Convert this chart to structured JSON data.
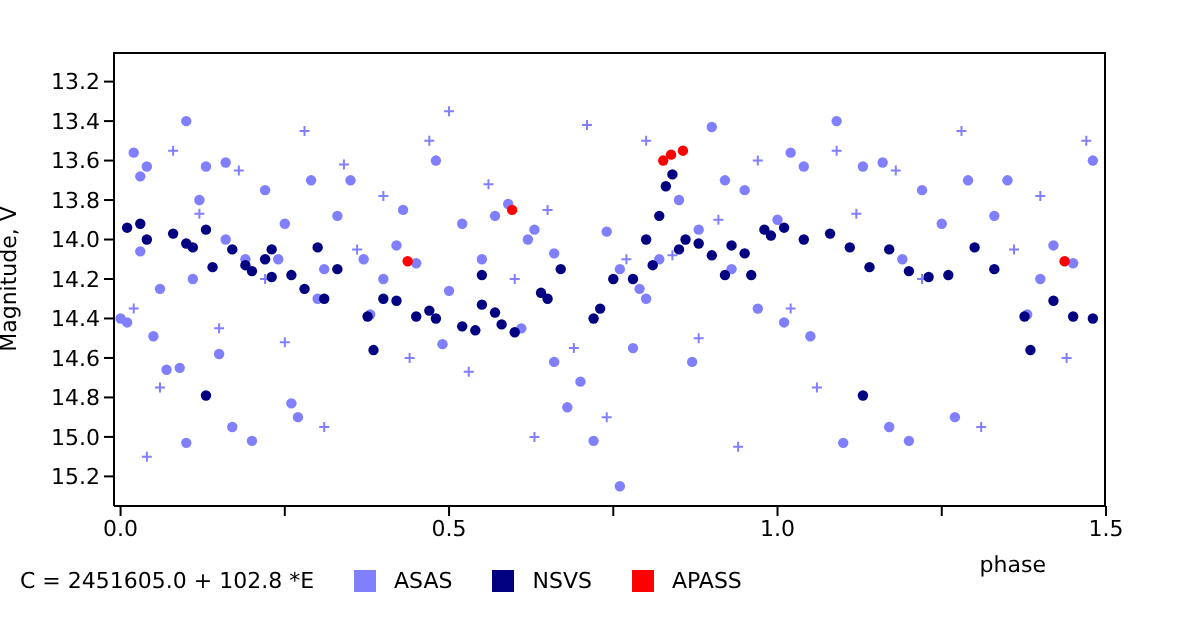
{
  "chart_data": {
    "type": "scatter",
    "xlabel": "phase",
    "ylabel": "Magnitude, V",
    "xlim": [
      -0.01,
      1.5
    ],
    "ylim": [
      15.35,
      13.05
    ],
    "xticks": [
      {
        "value": 0,
        "label": "0.0"
      },
      {
        "value": 0.25,
        "label": null
      },
      0.5,
      {
        "value": 0.75,
        "label": null
      },
      {
        "value": 1,
        "label": "1.0"
      },
      {
        "value": 1.25,
        "label": null
      },
      1.5
    ],
    "yticks": [
      13.2,
      13.4,
      13.6,
      13.8,
      {
        "value": 14,
        "label": "14.0"
      },
      14.2,
      14.4,
      14.6,
      14.8,
      {
        "value": 15,
        "label": "15.0"
      },
      15.2
    ],
    "legend": "bottom left",
    "annotations": [
      "C = 2451605.0 + 102.8 *E"
    ],
    "series": [
      {
        "name": "ASAS",
        "color": "#8080ff",
        "marker": "circle",
        "x": [
          0.0,
          0.01,
          0.02,
          0.03,
          0.03,
          0.04,
          0.05,
          0.07,
          0.09,
          0.1,
          0.1,
          0.11,
          0.12,
          0.13,
          0.15,
          0.16,
          0.17,
          0.19,
          0.2,
          0.22,
          0.24,
          0.25,
          0.26,
          0.27,
          0.29,
          0.3,
          0.33,
          0.35,
          0.37,
          0.38,
          0.4,
          0.43,
          0.45,
          0.48,
          0.49,
          0.5,
          0.06,
          0.16,
          0.31,
          0.42,
          0.52,
          0.55,
          0.57,
          0.59,
          0.62,
          0.63,
          0.66,
          0.68,
          0.7,
          0.72,
          0.74,
          0.76,
          0.78,
          0.8,
          0.82,
          0.85,
          0.88,
          0.9,
          0.92,
          0.93,
          0.95,
          0.97,
          1.0,
          0.87,
          0.79,
          0.61,
          0.66,
          0.76,
          1.01,
          1.02,
          1.04,
          1.05,
          1.09,
          1.1,
          1.13,
          1.16,
          1.17,
          1.19,
          1.2,
          1.22,
          1.25,
          1.27,
          1.29,
          1.33,
          1.35,
          1.38,
          1.4,
          1.45,
          1.48,
          1.42
        ],
        "values": [
          14.4,
          14.42,
          13.56,
          13.68,
          14.06,
          13.63,
          14.49,
          14.66,
          14.65,
          13.4,
          15.03,
          14.2,
          13.8,
          13.63,
          14.58,
          13.61,
          14.95,
          14.1,
          15.02,
          13.75,
          14.1,
          13.92,
          14.83,
          14.9,
          13.7,
          14.3,
          13.88,
          13.7,
          14.1,
          14.38,
          14.2,
          13.85,
          14.12,
          13.6,
          14.53,
          14.26,
          14.25,
          14.0,
          14.15,
          14.03,
          13.92,
          14.1,
          13.88,
          13.82,
          14.0,
          13.95,
          14.07,
          14.85,
          14.72,
          15.02,
          13.96,
          14.15,
          14.55,
          14.3,
          14.1,
          13.8,
          13.95,
          13.43,
          13.7,
          14.15,
          13.75,
          14.35,
          13.9,
          14.62,
          14.25,
          14.45,
          14.62,
          15.25,
          14.42,
          13.56,
          13.63,
          14.49,
          13.4,
          15.03,
          13.63,
          13.61,
          14.95,
          14.1,
          15.02,
          13.75,
          13.92,
          14.9,
          13.7,
          13.88,
          13.7,
          14.38,
          14.2,
          14.12,
          13.6,
          14.03
        ]
      },
      {
        "color": "#8080ff",
        "marker": "cross",
        "x": [
          0.02,
          0.04,
          0.06,
          0.08,
          0.12,
          0.15,
          0.18,
          0.22,
          0.25,
          0.28,
          0.31,
          0.34,
          0.36,
          0.4,
          0.44,
          0.47,
          0.5,
          0.53,
          0.56,
          0.6,
          0.63,
          0.65,
          0.69,
          0.71,
          0.74,
          0.77,
          0.8,
          0.84,
          0.88,
          0.91,
          0.94,
          0.97,
          1.02,
          1.06,
          1.09,
          1.12,
          1.18,
          1.22,
          1.28,
          1.31,
          1.36,
          1.4,
          1.44,
          1.47
        ],
        "values": [
          14.35,
          15.1,
          14.75,
          13.55,
          13.87,
          14.45,
          13.65,
          14.2,
          14.52,
          13.45,
          14.95,
          13.62,
          14.05,
          13.78,
          14.6,
          13.5,
          13.35,
          14.67,
          13.72,
          14.2,
          15.0,
          13.85,
          14.55,
          13.42,
          14.9,
          14.1,
          13.5,
          14.08,
          14.5,
          13.9,
          15.05,
          13.6,
          14.35,
          14.75,
          13.55,
          13.87,
          13.65,
          14.2,
          13.45,
          14.95,
          14.05,
          13.78,
          14.6,
          13.5
        ]
      },
      {
        "name": "NSVS",
        "color": "#000080",
        "marker": "circle",
        "x": [
          0.01,
          0.03,
          0.04,
          0.08,
          0.1,
          0.11,
          0.13,
          0.14,
          0.17,
          0.19,
          0.2,
          0.22,
          0.23,
          0.23,
          0.26,
          0.28,
          0.3,
          0.31,
          0.33,
          0.13,
          0.376,
          0.385,
          0.4,
          0.42,
          0.45,
          0.47,
          0.48,
          0.52,
          0.54,
          0.55,
          0.55,
          0.57,
          0.58,
          0.6,
          0.64,
          0.65,
          0.67,
          0.72,
          0.73,
          0.75,
          0.78,
          0.8,
          0.81,
          0.82,
          0.83,
          0.84,
          0.85,
          0.86,
          0.88,
          0.9,
          0.92,
          0.93,
          0.95,
          0.96,
          0.98,
          0.99,
          1.01,
          1.04,
          1.08,
          1.11,
          1.13,
          1.14,
          1.17,
          1.2,
          1.23,
          1.26,
          1.3,
          1.33,
          1.376,
          1.385,
          1.42,
          1.45,
          1.48
        ],
        "values": [
          13.94,
          13.92,
          14.0,
          13.97,
          14.02,
          14.04,
          13.95,
          14.14,
          14.05,
          14.13,
          14.16,
          14.1,
          14.05,
          14.19,
          14.18,
          14.25,
          14.04,
          14.3,
          14.15,
          14.79,
          14.39,
          14.56,
          14.3,
          14.31,
          14.39,
          14.36,
          14.4,
          14.44,
          14.46,
          14.18,
          14.33,
          14.37,
          14.43,
          14.47,
          14.27,
          14.3,
          14.15,
          14.4,
          14.35,
          14.2,
          14.2,
          14.0,
          14.13,
          13.88,
          13.73,
          13.67,
          14.05,
          14.0,
          14.02,
          14.08,
          14.18,
          14.03,
          14.07,
          14.18,
          13.95,
          13.98,
          13.94,
          14.0,
          13.97,
          14.04,
          14.79,
          14.14,
          14.05,
          14.16,
          14.19,
          14.18,
          14.04,
          14.15,
          14.39,
          14.56,
          14.31,
          14.39,
          14.4
        ]
      },
      {
        "name": "APASS",
        "color": "#ff0000",
        "marker": "circle",
        "x": [
          0.437,
          0.596,
          0.826,
          0.838,
          0.856,
          1.437
        ],
        "values": [
          14.11,
          13.85,
          13.6,
          13.57,
          13.55,
          14.11
        ]
      }
    ]
  }
}
